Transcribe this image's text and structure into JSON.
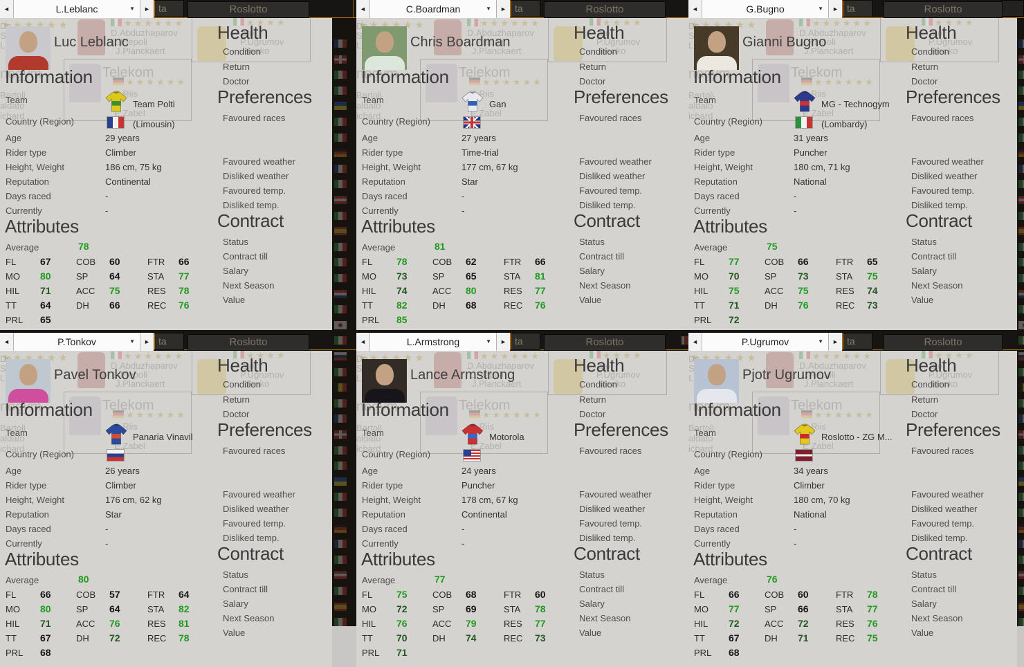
{
  "colors": {
    "accent_orange": "#a8690f",
    "attr_high_green": "#1f9a1f",
    "attr_mid_green": "#215721",
    "attr_black": "#161616"
  },
  "ui": {
    "information_heading": "Information",
    "attributes_heading": "Attributes",
    "average_label": "Average",
    "team_label": "Team",
    "country_label": "Country (Region)",
    "info_labels": [
      "Age",
      "Rider type",
      "Height, Weight",
      "Reputation",
      "Days raced",
      "Currently"
    ],
    "attr_columns": [
      [
        "FL",
        "MO",
        "HIL",
        "TT",
        "PRL"
      ],
      [
        "COB",
        "SP",
        "ACC",
        "DH"
      ],
      [
        "FTR",
        "STA",
        "RES",
        "REC"
      ]
    ],
    "health": {
      "heading": "Health",
      "items": [
        "Condition",
        "Return",
        "Doctor"
      ]
    },
    "preferences": {
      "heading": "Preferences",
      "items": [
        "Favoured races",
        "Favoured weather",
        "Disliked weather",
        "Favoured temp.",
        "Disliked temp."
      ]
    },
    "contract": {
      "heading": "Contract",
      "items": [
        "Status",
        "Contract till",
        "Salary",
        "Next Season",
        "Value"
      ]
    },
    "prev_arrow": "◄",
    "next_arrow": "►",
    "caret": "▼"
  },
  "background": {
    "tab_label": "ta",
    "window_title": "Roslotto",
    "ghost_roster1": [
      "D.Abduzhaparov",
      "L.Piepoli",
      "J.Planckaert"
    ],
    "ghost_team2": "Telekom",
    "ghost_roster2": [
      "B.Riis",
      "E.Zabel"
    ],
    "ghost_roster3": [
      "ato",
      "P.Ugrumov",
      "idenko"
    ],
    "ghost_left": [
      "De",
      "Sø",
      "Lu",
      "nogym",
      "Bartoli",
      "aldato",
      "ichard"
    ],
    "strip_flags": [
      "fr",
      "ch",
      "it",
      "it",
      "ua",
      "it",
      "it",
      "de",
      "fr",
      "it",
      "at",
      "it",
      "es",
      "it",
      "it",
      "it",
      "nl",
      "it",
      "jp",
      "it",
      "ru",
      "it",
      "be",
      "it"
    ]
  },
  "riders": [
    {
      "short_name": "L.Leblanc",
      "full_name": "Luc Leblanc",
      "team": "Team Polti",
      "flag": "fr",
      "region": "(Limousin)",
      "info": [
        "29 years",
        "Climber",
        "186 cm, 75 kg",
        "Continental",
        "-",
        "-"
      ],
      "average": 78,
      "attrs": {
        "FL": 67,
        "MO": 80,
        "HIL": 71,
        "TT": 64,
        "PRL": 65,
        "COB": 60,
        "SP": 64,
        "ACC": 75,
        "DH": 66,
        "FTR": 66,
        "STA": 77,
        "RES": 78,
        "REC": 76
      },
      "jersey": {
        "main": "#ddc81e",
        "band": "#3f8f2a"
      },
      "photo": {
        "bg": "#c9c9cd",
        "jersey": "#b23a2c"
      }
    },
    {
      "short_name": "C.Boardman",
      "full_name": "Chris Boardman",
      "team": "Gan",
      "flag": "uk",
      "region": "",
      "info": [
        "27 years",
        "Time-trial",
        "177 cm, 67 kg",
        "Star",
        "-",
        "-"
      ],
      "average": 81,
      "attrs": {
        "FL": 78,
        "MO": 73,
        "HIL": 74,
        "TT": 82,
        "PRL": 85,
        "COB": 62,
        "SP": 65,
        "ACC": 80,
        "DH": 68,
        "FTR": 66,
        "STA": 81,
        "RES": 77,
        "REC": 76
      },
      "jersey": {
        "main": "#e9e9ef",
        "band": "#2f63b5"
      },
      "photo": {
        "bg": "#7e9a6e",
        "jersey": "#dce6da"
      }
    },
    {
      "short_name": "G.Bugno",
      "full_name": "Gianni Bugno",
      "team": "MG - Technogym",
      "flag": "it",
      "region": "(Lombardy)",
      "info": [
        "31 years",
        "Puncher",
        "180 cm, 71 kg",
        "National",
        "-",
        "-"
      ],
      "average": 75,
      "attrs": {
        "FL": 77,
        "MO": 70,
        "HIL": 75,
        "TT": 71,
        "PRL": 72,
        "COB": 66,
        "SP": 73,
        "ACC": 75,
        "DH": 76,
        "FTR": 65,
        "STA": 75,
        "RES": 74,
        "REC": 73
      },
      "jersey": {
        "main": "#2a3a8e",
        "band": "#cf3030"
      },
      "photo": {
        "bg": "#473a28",
        "jersey": "#ece8e0"
      }
    },
    {
      "short_name": "P.Tonkov",
      "full_name": "Pavel Tonkov",
      "team": "Panaria Vinavil",
      "flag": "ru",
      "region": "",
      "info": [
        "26 years",
        "Climber",
        "176 cm, 62 kg",
        "Star",
        "-",
        "-"
      ],
      "average": 80,
      "attrs": {
        "FL": 66,
        "MO": 80,
        "HIL": 71,
        "TT": 67,
        "PRL": 68,
        "COB": 57,
        "SP": 64,
        "ACC": 76,
        "DH": 72,
        "FTR": 64,
        "STA": 82,
        "RES": 81,
        "REC": 78
      },
      "jersey": {
        "main": "#2a4aa0",
        "band": "#cf4f30"
      },
      "photo": {
        "bg": "#bfc7cf",
        "jersey": "#cf4f9e"
      }
    },
    {
      "short_name": "L.Armstrong",
      "full_name": "Lance Armstrong",
      "team": "Motorola",
      "flag": "us",
      "region": "",
      "info": [
        "24 years",
        "Puncher",
        "178 cm, 67 kg",
        "Continental",
        "-",
        "-"
      ],
      "average": 77,
      "attrs": {
        "FL": 75,
        "MO": 72,
        "HIL": 76,
        "TT": 70,
        "PRL": 71,
        "COB": 68,
        "SP": 69,
        "ACC": 79,
        "DH": 74,
        "FTR": 60,
        "STA": 78,
        "RES": 77,
        "REC": 73
      },
      "jersey": {
        "main": "#c93232",
        "band": "#3a66c9"
      },
      "photo": {
        "bg": "#332c26",
        "jersey": "#17151a"
      }
    },
    {
      "short_name": "P.Ugrumov",
      "full_name": "Pjotr Ugrumov",
      "team": "Roslotto - ZG M...",
      "flag": "lv",
      "region": "",
      "info": [
        "34 years",
        "Climber",
        "180 cm, 70 kg",
        "National",
        "-",
        "-"
      ],
      "average": 76,
      "attrs": {
        "FL": 66,
        "MO": 77,
        "HIL": 72,
        "TT": 67,
        "PRL": 68,
        "COB": 60,
        "SP": 66,
        "ACC": 72,
        "DH": 71,
        "FTR": 78,
        "STA": 77,
        "RES": 76,
        "REC": 75
      },
      "jersey": {
        "main": "#e3c81e",
        "band": "#c92a2a"
      },
      "photo": {
        "bg": "#b7c3d3",
        "jersey": "#e4e8ee"
      }
    }
  ]
}
